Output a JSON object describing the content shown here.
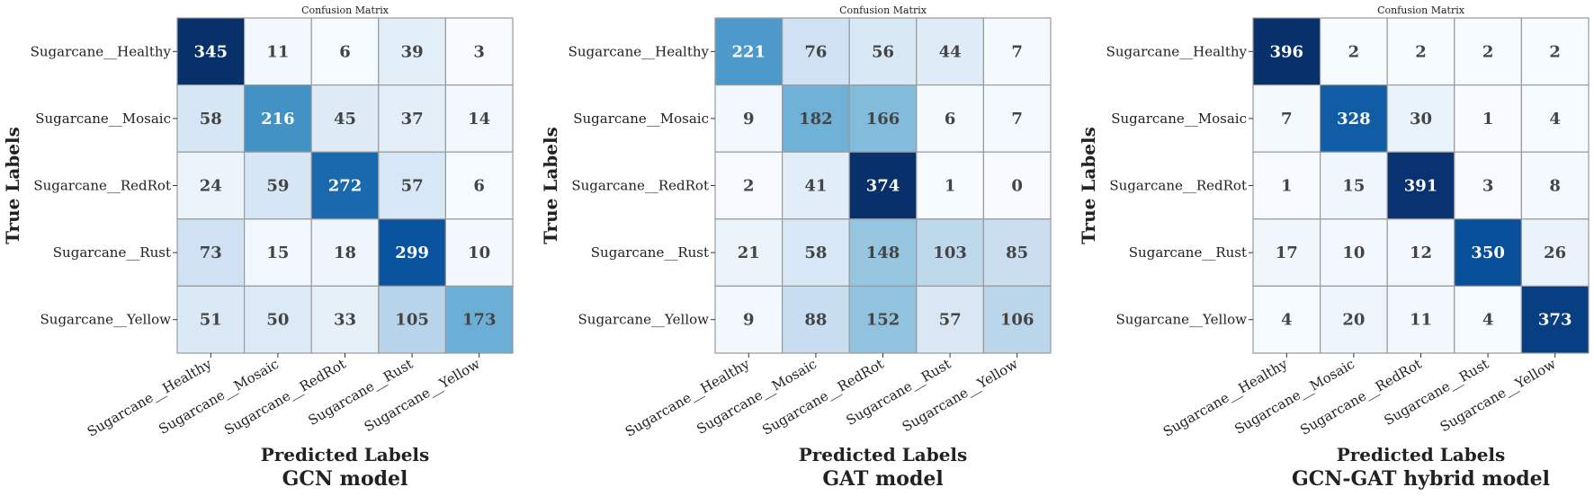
{
  "chart_data": [
    {
      "type": "heatmap",
      "title": "Confusion Matrix",
      "xlabel": "Predicted Labels",
      "ylabel": "True Labels",
      "caption": "GCN model",
      "x_categories": [
        "Sugarcane__Healthy",
        "Sugarcane__Mosaic",
        "Sugarcane__RedRot",
        "Sugarcane__Rust",
        "Sugarcane__Yellow"
      ],
      "y_categories": [
        "Sugarcane__Healthy",
        "Sugarcane__Mosaic",
        "Sugarcane__RedRot",
        "Sugarcane__Rust",
        "Sugarcane__Yellow"
      ],
      "values": [
        [
          345,
          11,
          6,
          39,
          3
        ],
        [
          58,
          216,
          45,
          37,
          14
        ],
        [
          24,
          59,
          272,
          57,
          6
        ],
        [
          73,
          15,
          18,
          299,
          10
        ],
        [
          51,
          50,
          33,
          105,
          173
        ]
      ],
      "colormap": "Blues"
    },
    {
      "type": "heatmap",
      "title": "Confusion Matrix",
      "xlabel": "Predicted Labels",
      "ylabel": "True Labels",
      "caption": "GAT model",
      "x_categories": [
        "Sugarcane__Healthy",
        "Sugarcane__Mosaic",
        "Sugarcane__RedRot",
        "Sugarcane__Rust",
        "Sugarcane__Yellow"
      ],
      "y_categories": [
        "Sugarcane__Healthy",
        "Sugarcane__Mosaic",
        "Sugarcane__RedRot",
        "Sugarcane__Rust",
        "Sugarcane__Yellow"
      ],
      "values": [
        [
          221,
          76,
          56,
          44,
          7
        ],
        [
          9,
          182,
          166,
          6,
          7
        ],
        [
          2,
          41,
          374,
          1,
          0
        ],
        [
          21,
          58,
          148,
          103,
          85
        ],
        [
          9,
          88,
          152,
          57,
          106
        ]
      ],
      "colormap": "Blues"
    },
    {
      "type": "heatmap",
      "title": "Confusion Matrix",
      "xlabel": "Predicted Labels",
      "ylabel": "True Labels",
      "caption": "GCN-GAT hybrid model",
      "x_categories": [
        "Sugarcane__Healthy",
        "Sugarcane__Mosaic",
        "Sugarcane__RedRot",
        "Sugarcane__Rust",
        "Sugarcane__Yellow"
      ],
      "y_categories": [
        "Sugarcane__Healthy",
        "Sugarcane__Mosaic",
        "Sugarcane__RedRot",
        "Sugarcane__Rust",
        "Sugarcane__Yellow"
      ],
      "values": [
        [
          396,
          2,
          2,
          2,
          2
        ],
        [
          7,
          328,
          30,
          1,
          4
        ],
        [
          1,
          15,
          391,
          3,
          8
        ],
        [
          17,
          10,
          12,
          350,
          26
        ],
        [
          4,
          20,
          11,
          4,
          373
        ]
      ],
      "colormap": "Blues"
    }
  ]
}
